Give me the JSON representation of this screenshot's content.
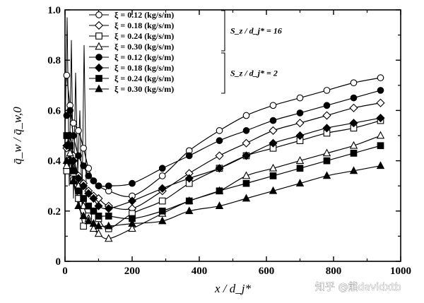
{
  "chart_data": {
    "type": "line",
    "title": "",
    "xlabel": "x / d_j*",
    "ylabel": "q̄_w / q̄_w,0",
    "xlim": [
      0,
      1000
    ],
    "ylim": [
      0,
      1.0
    ],
    "xticks": [
      "0",
      "200",
      "400",
      "600",
      "800",
      "1000"
    ],
    "yticks": [
      "0",
      "0.2",
      "0.4",
      "0.6",
      "0.8",
      "1.0"
    ],
    "legend_position": "top-left",
    "groups": [
      {
        "label": "S_z / d_j* = 16",
        "series_indices": [
          0,
          1,
          2,
          3
        ]
      },
      {
        "label": "S_z / d_j* = 2",
        "series_indices": [
          4,
          5,
          6,
          7
        ]
      }
    ],
    "series": [
      {
        "name": "ξ = 0.12 (kg/s/m)",
        "marker": "circle-open",
        "x": [
          5,
          15,
          25,
          40,
          55,
          70,
          85,
          100,
          130,
          200,
          290,
          370,
          460,
          540,
          620,
          700,
          780,
          860,
          940
        ],
        "y": [
          0.74,
          0.62,
          0.55,
          0.52,
          0.45,
          0.37,
          0.32,
          0.3,
          0.28,
          0.26,
          0.34,
          0.44,
          0.52,
          0.58,
          0.62,
          0.65,
          0.68,
          0.71,
          0.73
        ]
      },
      {
        "name": "ξ = 0.18 (kg/s/m)",
        "marker": "diamond-open",
        "x": [
          5,
          15,
          25,
          40,
          55,
          70,
          85,
          100,
          130,
          200,
          290,
          370,
          460,
          540,
          620,
          700,
          780,
          860,
          940
        ],
        "y": [
          0.45,
          0.5,
          0.42,
          0.34,
          0.31,
          0.28,
          0.26,
          0.25,
          0.22,
          0.21,
          0.28,
          0.35,
          0.42,
          0.47,
          0.52,
          0.55,
          0.58,
          0.61,
          0.63
        ]
      },
      {
        "name": "ξ = 0.24 (kg/s/m)",
        "marker": "square-open",
        "x": [
          5,
          15,
          25,
          40,
          55,
          70,
          85,
          100,
          130,
          200,
          290,
          370,
          460,
          540,
          620,
          700,
          780,
          860,
          940
        ],
        "y": [
          0.36,
          0.4,
          0.32,
          0.25,
          0.14,
          0.18,
          0.2,
          0.17,
          0.13,
          0.19,
          0.24,
          0.31,
          0.37,
          0.42,
          0.45,
          0.48,
          0.51,
          0.53,
          0.56
        ]
      },
      {
        "name": "ξ = 0.30 (kg/s/m)",
        "marker": "triangle-open",
        "x": [
          5,
          15,
          25,
          40,
          55,
          70,
          85,
          100,
          130,
          200,
          290,
          370,
          460,
          540,
          620,
          700,
          780,
          860,
          940
        ],
        "y": [
          0.38,
          0.43,
          0.35,
          0.3,
          0.22,
          0.17,
          0.13,
          0.11,
          0.09,
          0.13,
          0.19,
          0.24,
          0.28,
          0.34,
          0.37,
          0.4,
          0.43,
          0.46,
          0.5
        ]
      },
      {
        "name": "ξ = 0.12 (kg/s/m)",
        "marker": "circle-filled",
        "x": [
          5,
          15,
          25,
          40,
          55,
          70,
          85,
          100,
          130,
          200,
          290,
          370,
          460,
          540,
          620,
          700,
          780,
          860,
          940
        ],
        "y": [
          0.58,
          0.6,
          0.5,
          0.42,
          0.38,
          0.34,
          0.32,
          0.3,
          0.3,
          0.31,
          0.37,
          0.42,
          0.48,
          0.52,
          0.56,
          0.59,
          0.62,
          0.65,
          0.68
        ]
      },
      {
        "name": "ξ = 0.18 (kg/s/m)",
        "marker": "diamond-filled",
        "x": [
          5,
          15,
          25,
          40,
          55,
          70,
          85,
          100,
          130,
          200,
          290,
          370,
          460,
          540,
          620,
          700,
          780,
          860,
          940
        ],
        "y": [
          0.46,
          0.5,
          0.4,
          0.33,
          0.3,
          0.27,
          0.25,
          0.22,
          0.21,
          0.24,
          0.29,
          0.33,
          0.37,
          0.42,
          0.47,
          0.5,
          0.53,
          0.55,
          0.57
        ]
      },
      {
        "name": "ξ = 0.24 (kg/s/m)",
        "marker": "square-filled",
        "x": [
          5,
          15,
          25,
          40,
          55,
          70,
          85,
          100,
          130,
          200,
          290,
          370,
          460,
          540,
          620,
          700,
          780,
          860,
          940
        ],
        "y": [
          0.5,
          0.46,
          0.36,
          0.28,
          0.25,
          0.22,
          0.2,
          0.18,
          0.18,
          0.17,
          0.2,
          0.24,
          0.28,
          0.31,
          0.34,
          0.37,
          0.4,
          0.43,
          0.46
        ]
      },
      {
        "name": "ξ = 0.30 (kg/s/m)",
        "marker": "triangle-filled",
        "x": [
          5,
          15,
          25,
          40,
          55,
          70,
          85,
          100,
          130,
          200,
          290,
          370,
          460,
          540,
          620,
          700,
          780,
          860,
          940
        ],
        "y": [
          0.4,
          0.4,
          0.32,
          0.22,
          0.18,
          0.16,
          0.15,
          0.14,
          0.14,
          0.15,
          0.16,
          0.2,
          0.22,
          0.25,
          0.28,
          0.31,
          0.34,
          0.36,
          0.38
        ]
      }
    ]
  },
  "watermark": "知乎 @熊davidxtb"
}
